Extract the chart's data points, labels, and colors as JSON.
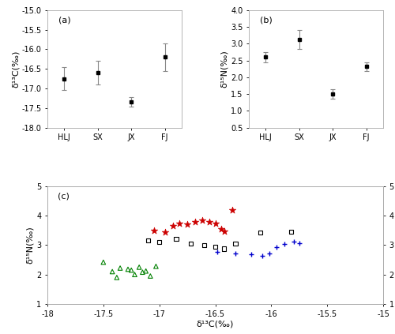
{
  "panel_a": {
    "categories": [
      "HLJ",
      "SX",
      "JX",
      "FJ"
    ],
    "means": [
      -16.75,
      -16.6,
      -17.35,
      -16.2
    ],
    "errors": [
      0.3,
      0.3,
      0.12,
      0.35
    ],
    "ylabel": "δ¹³C(‰)",
    "ylim": [
      -18.0,
      -15.0
    ],
    "yticks": [
      -18.0,
      -17.5,
      -17.0,
      -16.5,
      -16.0,
      -15.5,
      -15.0
    ],
    "ytick_labels": [
      "-18.0",
      "-17.5",
      "-17.0",
      "-16.5",
      "-16.0",
      "-15.5",
      "-15.0"
    ],
    "label": "(a)"
  },
  "panel_b": {
    "categories": [
      "HLJ",
      "SX",
      "JX",
      "FJ"
    ],
    "means": [
      2.6,
      3.12,
      1.5,
      2.32
    ],
    "errors": [
      0.15,
      0.28,
      0.15,
      0.13
    ],
    "ylabel": "δ¹⁵N(‰)",
    "ylim": [
      0.5,
      4.0
    ],
    "yticks": [
      0.5,
      1.0,
      1.5,
      2.0,
      2.5,
      3.0,
      3.5,
      4.0
    ],
    "ytick_labels": [
      "0.5",
      "1.0",
      "1.5",
      "2.0",
      "2.5",
      "3.0",
      "3.5",
      "4.0"
    ],
    "label": "(b)"
  },
  "panel_c": {
    "xlabel": "δ¹³C(‰)",
    "ylabel": "δ¹⁵N(‰)",
    "xlim": [
      -18.0,
      -15.0
    ],
    "ylim": [
      1.0,
      5.0
    ],
    "xticks": [
      -18.0,
      -17.5,
      -17.0,
      -16.5,
      -16.0,
      -15.5,
      -15.0
    ],
    "xtick_labels": [
      "-18",
      "-17.5",
      "-17",
      "-16.5",
      "-16",
      "-15.5",
      "-15"
    ],
    "yticks": [
      1,
      2,
      3,
      4,
      5
    ],
    "ytick_labels": [
      "1",
      "2",
      "3",
      "4",
      "5"
    ],
    "label": "(c)",
    "HLJ_x": [
      -17.5,
      -17.42,
      -17.35,
      -17.28,
      -17.22,
      -17.18,
      -17.12,
      -17.08,
      -17.03,
      -17.15,
      -17.25,
      -17.38
    ],
    "HLJ_y": [
      2.42,
      2.1,
      2.22,
      2.18,
      2.0,
      2.25,
      2.12,
      1.95,
      2.28,
      2.08,
      2.15,
      1.9
    ],
    "SX_x": [
      -17.05,
      -16.95,
      -16.88,
      -16.82,
      -16.75,
      -16.68,
      -16.62,
      -16.55,
      -16.5,
      -16.45,
      -16.42,
      -16.35
    ],
    "SX_y": [
      3.5,
      3.45,
      3.65,
      3.75,
      3.7,
      3.8,
      3.85,
      3.78,
      3.75,
      3.55,
      3.48,
      4.2
    ],
    "JX_x": [
      -17.1,
      -17.0,
      -16.85,
      -16.72,
      -16.6,
      -16.5,
      -16.42,
      -16.32,
      -16.1,
      -15.82
    ],
    "JX_y": [
      3.15,
      3.1,
      3.22,
      3.05,
      3.0,
      2.95,
      2.88,
      3.05,
      3.42,
      3.45
    ],
    "FJ_x": [
      -16.48,
      -16.32,
      -16.18,
      -16.08,
      -16.02,
      -15.95,
      -15.88,
      -15.8,
      -15.75
    ],
    "FJ_y": [
      2.78,
      2.72,
      2.68,
      2.65,
      2.72,
      2.92,
      3.05,
      3.12,
      3.08
    ],
    "HLJ_color": "#008000",
    "SX_color": "#cc0000",
    "JX_color": "#000000",
    "FJ_color": "#0000cc"
  }
}
